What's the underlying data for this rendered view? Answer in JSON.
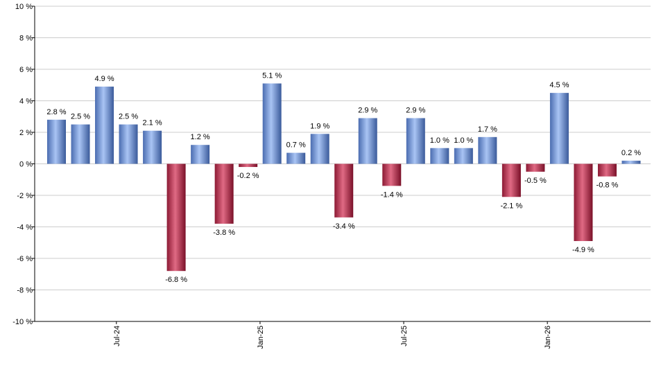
{
  "chart_data": {
    "type": "bar",
    "title": "",
    "xlabel": "",
    "ylabel": "",
    "ylim": [
      -10,
      10
    ],
    "yticks": [
      10,
      8,
      6,
      4,
      2,
      0,
      -2,
      -4,
      -6,
      -8,
      -10
    ],
    "ytick_suffix": " %",
    "grid": true,
    "values": [
      2.8,
      2.5,
      4.9,
      2.5,
      2.1,
      -6.8,
      1.2,
      -3.8,
      -0.2,
      5.1,
      0.7,
      1.9,
      -3.4,
      2.9,
      -1.4,
      2.9,
      1.0,
      1.0,
      1.7,
      -2.1,
      -0.5,
      4.5,
      -4.9,
      -0.8,
      0.2
    ],
    "value_labels": [
      "2.8 %",
      "2.5 %",
      "4.9 %",
      "2.5 %",
      "2.1 %",
      "-6.8 %",
      "1.2 %",
      "-3.8 %",
      "-0.2 %",
      "5.1 %",
      "0.7 %",
      "1.9 %",
      "-3.4 %",
      "2.9 %",
      "-1.4 %",
      "2.9 %",
      "1.0 %",
      "1.0 %",
      "1.7 %",
      "-2.1 %",
      "-0.5 %",
      "4.5 %",
      "-4.9 %",
      "-0.8 %",
      "0.2 %"
    ],
    "x_tick_labels": [
      {
        "label": "Jul-24",
        "after_bar": 2
      },
      {
        "label": "Jan-25",
        "after_bar": 8
      },
      {
        "label": "Jul-25",
        "after_bar": 14
      },
      {
        "label": "Jan-26",
        "after_bar": 20
      }
    ],
    "colors": {
      "positive": "#8fb0e8",
      "positive_dark": "#3f5f9e",
      "negative": "#d0506c",
      "negative_dark": "#8c1a34",
      "grid": "#cccccc",
      "axis": "#000000"
    }
  }
}
